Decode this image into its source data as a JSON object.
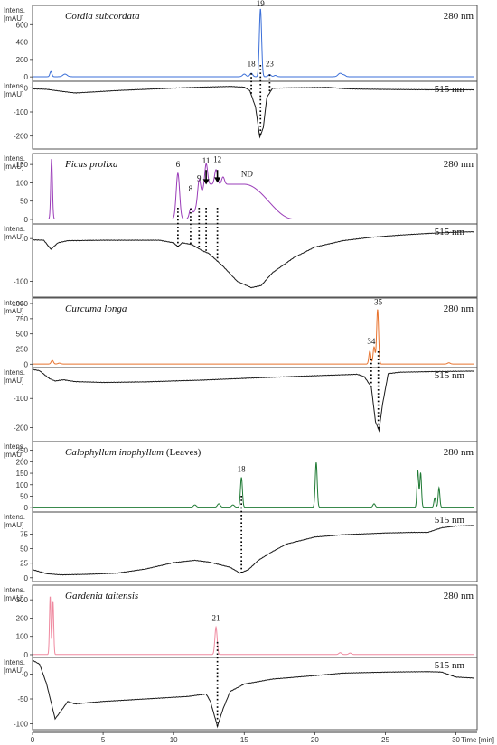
{
  "chart_data": {
    "type": "line",
    "xlabel": "Time [min]",
    "y_axis_label_line1": "Intens.",
    "y_axis_label_line2": "[mAU]",
    "xlim": [
      0,
      31.5
    ],
    "x_ticks": [
      0,
      5,
      10,
      15,
      20,
      25,
      30
    ],
    "x_tick_labels": [
      "0",
      "5",
      "10",
      "15",
      "20",
      "25",
      "30"
    ],
    "panels": [
      {
        "species": "Cordia subcordata",
        "species_suffix": "",
        "uv": {
          "wavelength": "280 nm",
          "color": "#3b6fd8",
          "ylim": [
            -40,
            800
          ],
          "yticks": [
            0,
            200,
            400,
            600
          ],
          "baseline": 2,
          "run_end": 31.3,
          "peaks": [
            [
              1.3,
              60,
              0.07
            ],
            [
              2.3,
              30,
              0.15
            ],
            [
              15.0,
              30,
              0.12
            ],
            [
              15.5,
              40,
              0.1
            ],
            [
              16.15,
              780,
              0.08
            ],
            [
              16.8,
              25,
              0.1
            ],
            [
              17.2,
              15,
              0.1
            ],
            [
              21.8,
              40,
              0.15
            ],
            [
              22.1,
              15,
              0.1
            ]
          ],
          "labels": [
            {
              "text": "18",
              "x": 15.5,
              "y": 100
            },
            {
              "text": "19",
              "x": 16.15,
              "y": 790
            },
            {
              "text": "23",
              "x": 16.8,
              "y": 100
            }
          ]
        },
        "vis": {
          "wavelength": "515 nm",
          "ylim": [
            -250,
            20
          ],
          "yticks": [
            0,
            -100,
            -200
          ],
          "run_end": 31.3,
          "trace": [
            [
              0,
              -4
            ],
            [
              1.0,
              -6
            ],
            [
              2.0,
              -14
            ],
            [
              3.0,
              -21
            ],
            [
              4.0,
              -18
            ],
            [
              6.0,
              -11
            ],
            [
              8.0,
              -6
            ],
            [
              10.0,
              -1
            ],
            [
              12.0,
              3
            ],
            [
              14.0,
              6
            ],
            [
              15.0,
              3
            ],
            [
              15.4,
              -12
            ],
            [
              15.8,
              -80
            ],
            [
              16.1,
              -205
            ],
            [
              16.35,
              -165
            ],
            [
              16.6,
              -40
            ],
            [
              17.0,
              -2
            ],
            [
              18.0,
              0
            ],
            [
              21.0,
              2
            ],
            [
              22.0,
              -3
            ],
            [
              23.0,
              -5
            ],
            [
              26.0,
              -7
            ],
            [
              29.0,
              -8
            ],
            [
              31.3,
              -8
            ]
          ],
          "dotted_x": [
            15.5,
            16.15,
            16.8
          ]
        }
      },
      {
        "species": "Ficus prolixa",
        "species_suffix": "",
        "uv": {
          "wavelength": "280 nm",
          "color": "#9a3cb8",
          "ylim": [
            -10,
            175
          ],
          "yticks": [
            0,
            50,
            100,
            150
          ],
          "baseline": 1,
          "run_end": 31.3,
          "hump": {
            "start": 11.0,
            "plateau_start": 12.5,
            "plateau_end": 15.0,
            "end": 18.5,
            "height": 95
          },
          "peaks": [
            [
              1.35,
              165,
              0.06
            ],
            [
              10.3,
              125,
              0.12
            ],
            [
              11.2,
              25,
              0.1
            ],
            [
              11.8,
              55,
              0.1
            ],
            [
              12.3,
              60,
              0.1
            ],
            [
              13.0,
              40,
              0.1
            ],
            [
              13.5,
              20,
              0.1
            ]
          ],
          "labels": [
            {
              "text": "6",
              "x": 10.3,
              "y": 138
            },
            {
              "text": "8",
              "x": 11.2,
              "y": 72
            },
            {
              "text": "9",
              "x": 11.8,
              "y": 100
            },
            {
              "text": "11",
              "x": 12.3,
              "y": 148
            },
            {
              "text": "12",
              "x": 13.1,
              "y": 152
            },
            {
              "text": "ND",
              "x": 15.2,
              "y": 112
            }
          ],
          "arrows": [
            {
              "x": 12.3,
              "y_top": 135,
              "y_tip": 95
            },
            {
              "x": 13.1,
              "y_top": 135,
              "y_tip": 100
            }
          ]
        },
        "vis": {
          "wavelength": "515 nm",
          "ylim": [
            -135,
            30
          ],
          "yticks": [
            0,
            -100
          ],
          "run_end": 31.3,
          "trace": [
            [
              0,
              -3
            ],
            [
              0.8,
              -4
            ],
            [
              1.3,
              -25
            ],
            [
              1.8,
              -10
            ],
            [
              2.5,
              -5
            ],
            [
              5.0,
              -4
            ],
            [
              9.0,
              -4
            ],
            [
              10.0,
              -10
            ],
            [
              10.3,
              -19
            ],
            [
              10.6,
              -10
            ],
            [
              11.3,
              -14
            ],
            [
              12.0,
              -28
            ],
            [
              12.5,
              -35
            ],
            [
              13.5,
              -65
            ],
            [
              14.5,
              -100
            ],
            [
              15.5,
              -115
            ],
            [
              16.2,
              -110
            ],
            [
              17.0,
              -80
            ],
            [
              18.5,
              -45
            ],
            [
              20.0,
              -20
            ],
            [
              22.0,
              -5
            ],
            [
              24.0,
              3
            ],
            [
              26.0,
              8
            ],
            [
              28.0,
              12
            ],
            [
              30.0,
              15
            ],
            [
              31.3,
              16
            ]
          ],
          "dotted_x": [
            10.3,
            11.2,
            11.8,
            12.3,
            13.1
          ]
        }
      },
      {
        "species": "Curcuma longa",
        "species_suffix": "",
        "uv": {
          "wavelength": "280 nm",
          "color": "#e8732e",
          "ylim": [
            -40,
            1060
          ],
          "yticks": [
            0,
            250,
            500,
            750,
            1000
          ],
          "baseline": 3,
          "run_end": 31.3,
          "peaks": [
            [
              1.4,
              60,
              0.08
            ],
            [
              1.9,
              15,
              0.1
            ],
            [
              23.9,
              215,
              0.07
            ],
            [
              24.2,
              280,
              0.07
            ],
            [
              24.45,
              900,
              0.07
            ],
            [
              29.5,
              20,
              0.1
            ]
          ],
          "labels": [
            {
              "text": "34",
              "x": 24.0,
              "y": 300
            },
            {
              "text": "35",
              "x": 24.5,
              "y": 950
            }
          ]
        },
        "vis": {
          "wavelength": "515 nm",
          "ylim": [
            -245,
            0
          ],
          "yticks": [
            -100,
            -200
          ],
          "run_end": 31.3,
          "trace": [
            [
              0,
              0
            ],
            [
              0.5,
              -5
            ],
            [
              1.2,
              -32
            ],
            [
              1.6,
              -40
            ],
            [
              2.2,
              -36
            ],
            [
              3.0,
              -42
            ],
            [
              5.0,
              -45
            ],
            [
              8.0,
              -43
            ],
            [
              12.0,
              -37
            ],
            [
              16.0,
              -29
            ],
            [
              20.0,
              -22
            ],
            [
              23.0,
              -17
            ],
            [
              23.5,
              -25
            ],
            [
              24.0,
              -60
            ],
            [
              24.3,
              -180
            ],
            [
              24.55,
              -210
            ],
            [
              24.8,
              -120
            ],
            [
              25.2,
              -15
            ],
            [
              26.0,
              -10
            ],
            [
              28.0,
              -8
            ],
            [
              31.3,
              -6
            ]
          ],
          "dotted_x": [
            24.0,
            24.5
          ]
        }
      },
      {
        "species": "Calophyllum inophyllum",
        "species_suffix": " (Leaves)",
        "uv": {
          "wavelength": "280 nm",
          "color": "#1f7a34",
          "ylim": [
            -15,
            280
          ],
          "yticks": [
            0,
            50,
            100,
            150,
            200,
            250
          ],
          "baseline": 2,
          "run_end": 31.3,
          "peaks": [
            [
              11.5,
              10,
              0.1
            ],
            [
              13.2,
              15,
              0.1
            ],
            [
              14.2,
              10,
              0.1
            ],
            [
              14.8,
              130,
              0.07
            ],
            [
              20.1,
              195,
              0.07
            ],
            [
              24.2,
              15,
              0.08
            ],
            [
              27.3,
              160,
              0.06
            ],
            [
              27.5,
              150,
              0.06
            ],
            [
              28.5,
              40,
              0.06
            ],
            [
              28.8,
              85,
              0.06
            ]
          ],
          "labels": [
            {
              "text": "18",
              "x": 14.8,
              "y": 148
            }
          ]
        },
        "vis": {
          "wavelength": "515 nm",
          "ylim": [
            -5,
            110
          ],
          "yticks": [
            0,
            25,
            50,
            75
          ],
          "run_end": 31.3,
          "trace": [
            [
              0,
              14
            ],
            [
              1.0,
              7
            ],
            [
              2.0,
              5
            ],
            [
              4.0,
              6
            ],
            [
              6.0,
              8
            ],
            [
              8.0,
              15
            ],
            [
              10.0,
              26
            ],
            [
              11.5,
              30
            ],
            [
              12.5,
              27
            ],
            [
              14.0,
              18
            ],
            [
              14.7,
              8
            ],
            [
              15.3,
              14
            ],
            [
              16.0,
              30
            ],
            [
              17.0,
              45
            ],
            [
              18.0,
              58
            ],
            [
              20.0,
              70
            ],
            [
              22.0,
              74
            ],
            [
              25.0,
              77
            ],
            [
              27.0,
              78
            ],
            [
              28.0,
              78
            ],
            [
              29.0,
              86
            ],
            [
              30.0,
              89
            ],
            [
              31.3,
              90
            ]
          ],
          "dotted_x": [
            14.8
          ]
        }
      },
      {
        "species": "Gardenia taitensis",
        "species_suffix": "",
        "uv": {
          "wavelength": "280 nm",
          "color": "#ef8aa0",
          "ylim": [
            -10,
            370
          ],
          "yticks": [
            0,
            100,
            200,
            300
          ],
          "baseline": 1,
          "run_end": 31.3,
          "peaks": [
            [
              1.25,
              320,
              0.05
            ],
            [
              1.45,
              290,
              0.05
            ],
            [
              13.0,
              150,
              0.08
            ],
            [
              21.8,
              10,
              0.1
            ],
            [
              22.5,
              8,
              0.1
            ]
          ],
          "labels": [
            {
              "text": "21",
              "x": 13.0,
              "y": 175
            }
          ]
        },
        "vis": {
          "wavelength": "515 nm",
          "ylim": [
            -110,
            30
          ],
          "yticks": [
            0,
            -50,
            -100
          ],
          "run_end": 31.3,
          "trace": [
            [
              0,
              28
            ],
            [
              0.5,
              20
            ],
            [
              1.0,
              -20
            ],
            [
              1.6,
              -90
            ],
            [
              2.0,
              -75
            ],
            [
              2.5,
              -55
            ],
            [
              3.0,
              -60
            ],
            [
              5.0,
              -55
            ],
            [
              8.0,
              -50
            ],
            [
              11.0,
              -45
            ],
            [
              12.3,
              -40
            ],
            [
              12.6,
              -55
            ],
            [
              13.1,
              -105
            ],
            [
              13.5,
              -70
            ],
            [
              14.0,
              -35
            ],
            [
              15.0,
              -20
            ],
            [
              17.0,
              -10
            ],
            [
              20.0,
              -3
            ],
            [
              22.0,
              2
            ],
            [
              25.0,
              4
            ],
            [
              28.0,
              5
            ],
            [
              29.0,
              4
            ],
            [
              30.0,
              -6
            ],
            [
              31.3,
              -8
            ]
          ],
          "dotted_x": [
            13.1
          ]
        }
      }
    ]
  }
}
